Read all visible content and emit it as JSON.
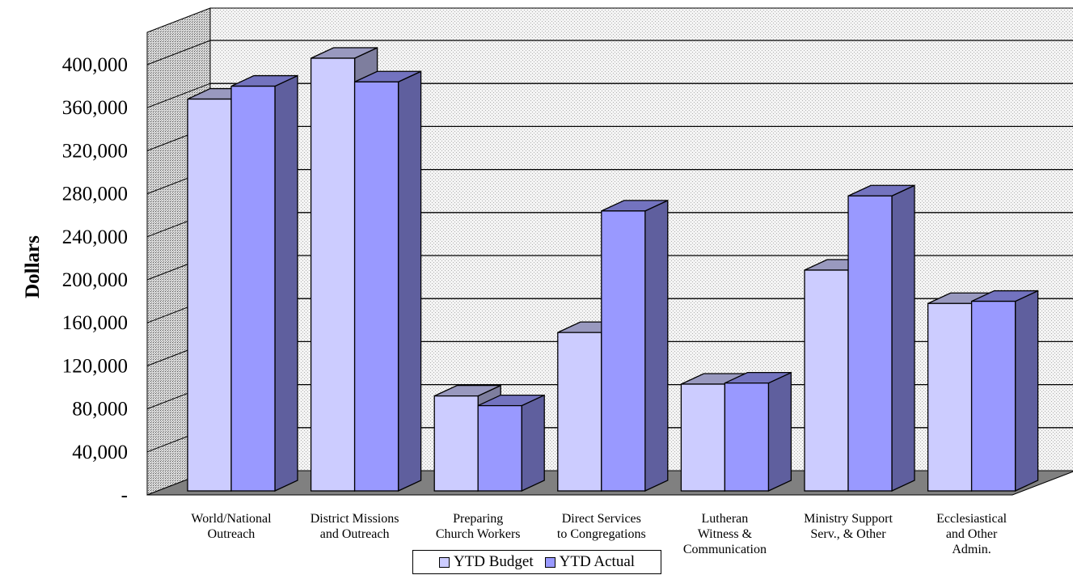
{
  "chart_data": {
    "type": "bar",
    "title": "",
    "xlabel": "",
    "ylabel": "Dollars",
    "ylim": [
      0,
      400000
    ],
    "y_ticks": [
      "-",
      "40,000",
      "80,000",
      "120,000",
      "160,000",
      "200,000",
      "240,000",
      "280,000",
      "320,000",
      "360,000",
      "400,000"
    ],
    "categories": [
      [
        "World/National",
        "Outreach"
      ],
      [
        "District Missions",
        "and Outreach"
      ],
      [
        "Preparing",
        "Church Workers"
      ],
      [
        "Direct Services",
        "to Congregations"
      ],
      [
        "Lutheran",
        "Witness &",
        "Communication"
      ],
      [
        "Ministry Support",
        "Serv., & Other"
      ],
      [
        "Ecclesiastical",
        "and Other",
        "Admin."
      ]
    ],
    "series": [
      {
        "name": "YTD Budget",
        "color": "#ccccff",
        "values": [
          362000,
          400000,
          86000,
          145000,
          97000,
          203000,
          172000
        ]
      },
      {
        "name": "YTD Actual",
        "color": "#9999ff",
        "values": [
          374000,
          378000,
          77000,
          258000,
          98000,
          272000,
          174000
        ]
      }
    ],
    "grid": true,
    "legend_position": "bottom",
    "three_d": true
  }
}
